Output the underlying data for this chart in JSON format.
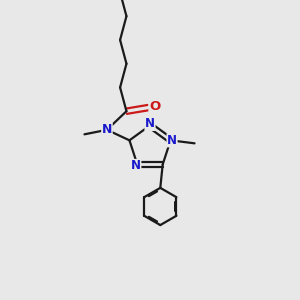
{
  "bg_color": "#e8e8e8",
  "bond_color": "#1a1a1a",
  "N_color": "#1a1acc",
  "O_color": "#cc1a1a",
  "line_width": 1.6,
  "font_size_atom": 8.5,
  "xlim": [
    0,
    10
  ],
  "ylim": [
    0,
    10
  ]
}
